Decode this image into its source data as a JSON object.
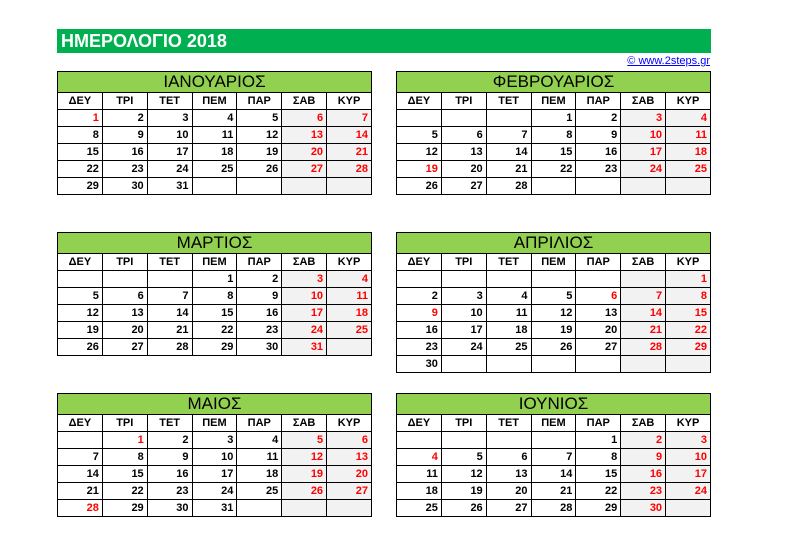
{
  "header": {
    "title": "ΗΜΕΡΟΛΟΓΙΟ 2018",
    "credit": "© www.2steps.gr"
  },
  "weekdays": [
    "ΔΕΥ",
    "ΤΡΙ",
    "ΤΕΤ",
    "ΠΕΜ",
    "ΠΑΡ",
    "ΣΑΒ",
    "ΚΥΡ"
  ],
  "colors": {
    "title_bar": "#00b050",
    "month_header": "#92d050",
    "holiday": "#ff0000",
    "link": "#0000ff"
  },
  "months": [
    {
      "name": "ΙΑΝΟΥΑΡΙΟΣ",
      "weeks": [
        [
          "1",
          "2",
          "3",
          "4",
          "5",
          "6",
          "7"
        ],
        [
          "8",
          "9",
          "10",
          "11",
          "12",
          "13",
          "14"
        ],
        [
          "15",
          "16",
          "17",
          "18",
          "19",
          "20",
          "21"
        ],
        [
          "22",
          "23",
          "24",
          "25",
          "26",
          "27",
          "28"
        ],
        [
          "29",
          "30",
          "31",
          "",
          "",
          "",
          ""
        ]
      ],
      "holidays": [
        "1"
      ]
    },
    {
      "name": "ΦΕΒΡΟΥΑΡΙΟΣ",
      "weeks": [
        [
          "",
          "",
          "",
          "1",
          "2",
          "3",
          "4"
        ],
        [
          "5",
          "6",
          "7",
          "8",
          "9",
          "10",
          "11"
        ],
        [
          "12",
          "13",
          "14",
          "15",
          "16",
          "17",
          "18"
        ],
        [
          "19",
          "20",
          "21",
          "22",
          "23",
          "24",
          "25"
        ],
        [
          "26",
          "27",
          "28",
          "",
          "",
          "",
          ""
        ]
      ],
      "holidays": [
        "19"
      ]
    },
    {
      "name": "ΜΑΡΤΙΟΣ",
      "weeks": [
        [
          "",
          "",
          "",
          "1",
          "2",
          "3",
          "4"
        ],
        [
          "5",
          "6",
          "7",
          "8",
          "9",
          "10",
          "11"
        ],
        [
          "12",
          "13",
          "14",
          "15",
          "16",
          "17",
          "18"
        ],
        [
          "19",
          "20",
          "21",
          "22",
          "23",
          "24",
          "25"
        ],
        [
          "26",
          "27",
          "28",
          "29",
          "30",
          "31",
          ""
        ]
      ],
      "holidays": []
    },
    {
      "name": "ΑΠΡΙΛΙΟΣ",
      "weeks": [
        [
          "",
          "",
          "",
          "",
          "",
          "",
          "1"
        ],
        [
          "2",
          "3",
          "4",
          "5",
          "6",
          "7",
          "8"
        ],
        [
          "9",
          "10",
          "11",
          "12",
          "13",
          "14",
          "15"
        ],
        [
          "16",
          "17",
          "18",
          "19",
          "20",
          "21",
          "22"
        ],
        [
          "23",
          "24",
          "25",
          "26",
          "27",
          "28",
          "29"
        ],
        [
          "30",
          "",
          "",
          "",
          "",
          "",
          ""
        ]
      ],
      "holidays": [
        "6",
        "9"
      ]
    },
    {
      "name": "ΜΑΙΟΣ",
      "weeks": [
        [
          "",
          "1",
          "2",
          "3",
          "4",
          "5",
          "6"
        ],
        [
          "7",
          "8",
          "9",
          "10",
          "11",
          "12",
          "13"
        ],
        [
          "14",
          "15",
          "16",
          "17",
          "18",
          "19",
          "20"
        ],
        [
          "21",
          "22",
          "23",
          "24",
          "25",
          "26",
          "27"
        ],
        [
          "28",
          "29",
          "30",
          "31",
          "",
          "",
          ""
        ]
      ],
      "holidays": [
        "1",
        "28"
      ]
    },
    {
      "name": "ΙΟΥΝΙΟΣ",
      "weeks": [
        [
          "",
          "",
          "",
          "",
          "1",
          "2",
          "3"
        ],
        [
          "4",
          "5",
          "6",
          "7",
          "8",
          "9",
          "10"
        ],
        [
          "11",
          "12",
          "13",
          "14",
          "15",
          "16",
          "17"
        ],
        [
          "18",
          "19",
          "20",
          "21",
          "22",
          "23",
          "24"
        ],
        [
          "25",
          "26",
          "27",
          "28",
          "29",
          "30",
          ""
        ]
      ],
      "holidays": [
        "4",
        "30"
      ]
    }
  ]
}
